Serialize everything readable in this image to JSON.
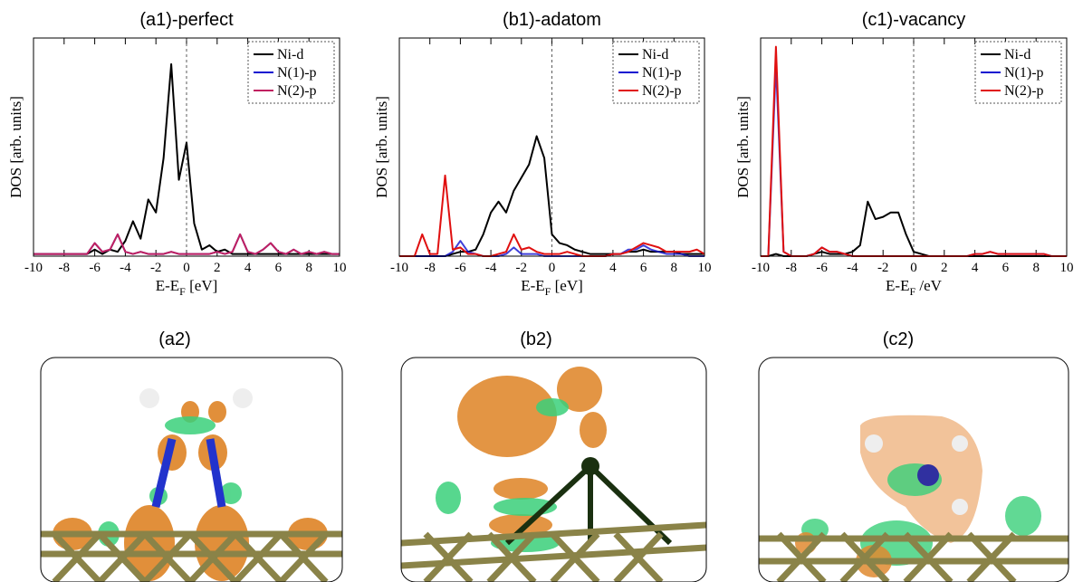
{
  "chart_data": [
    {
      "type": "line",
      "title": "(a1)-perfect",
      "ylabel": "DOS [arb. units]",
      "xlabel": [
        "E-E",
        "F",
        " [eV]"
      ],
      "xlim": [
        -10,
        10
      ],
      "ylim": [
        0,
        1
      ],
      "xticks": [
        -10,
        -8,
        -6,
        -4,
        -2,
        0,
        2,
        4,
        6,
        8,
        10
      ],
      "vline": 0,
      "legend": "upper right",
      "x": [
        -10,
        -9.5,
        -9,
        -8.5,
        -8,
        -7.5,
        -7,
        -6.5,
        -6,
        -5.5,
        -5,
        -4.5,
        -4,
        -3.5,
        -3,
        -2.5,
        -2,
        -1.5,
        -1,
        -0.5,
        0,
        0.5,
        1,
        1.5,
        2,
        2.5,
        3,
        3.5,
        4,
        4.5,
        5,
        5.5,
        6,
        6.5,
        7,
        7.5,
        8,
        8.5,
        9,
        9.5,
        10
      ],
      "series": [
        {
          "name": "Ni-d",
          "color": "#000000",
          "values": [
            0.01,
            0.01,
            0.01,
            0.01,
            0.01,
            0.01,
            0.01,
            0.01,
            0.03,
            0.01,
            0.03,
            0.02,
            0.07,
            0.16,
            0.08,
            0.26,
            0.2,
            0.45,
            0.88,
            0.35,
            0.52,
            0.15,
            0.03,
            0.05,
            0.02,
            0.03,
            0.01,
            0.01,
            0.01,
            0.01,
            0.01,
            0.01,
            0.01,
            0.01,
            0.01,
            0.01,
            0.01,
            0.01,
            0.01,
            0.01,
            0.01
          ]
        },
        {
          "name": "N(1)-p",
          "color": "#1010d0",
          "values": [
            0.01,
            0.01,
            0.01,
            0.01,
            0.01,
            0.01,
            0.01,
            0.01,
            0.06,
            0.02,
            0.03,
            0.1,
            0.02,
            0.01,
            0.02,
            0.01,
            0.01,
            0.01,
            0.02,
            0.01,
            0.01,
            0.01,
            0.01,
            0.01,
            0.02,
            0.01,
            0.02,
            0.1,
            0.02,
            0.01,
            0.03,
            0.06,
            0.02,
            0.01,
            0.03,
            0.01,
            0.02,
            0.01,
            0.02,
            0.01,
            0.01
          ]
        },
        {
          "name": "N(2)-p",
          "color": "#c02060",
          "values": [
            0.01,
            0.01,
            0.01,
            0.01,
            0.01,
            0.01,
            0.01,
            0.01,
            0.06,
            0.02,
            0.03,
            0.1,
            0.02,
            0.01,
            0.02,
            0.01,
            0.01,
            0.01,
            0.02,
            0.01,
            0.01,
            0.01,
            0.01,
            0.01,
            0.02,
            0.01,
            0.02,
            0.1,
            0.02,
            0.01,
            0.03,
            0.06,
            0.02,
            0.01,
            0.03,
            0.01,
            0.02,
            0.01,
            0.02,
            0.01,
            0.01
          ]
        }
      ]
    },
    {
      "type": "line",
      "title": "(b1)-adatom",
      "ylabel": "DOS [arb. units]",
      "xlabel": [
        "E-E",
        "F",
        " [eV]"
      ],
      "xlim": [
        -10,
        10
      ],
      "ylim": [
        0,
        1
      ],
      "xticks": [
        -10,
        -8,
        -6,
        -4,
        -2,
        0,
        2,
        4,
        6,
        8,
        10
      ],
      "vline": 0,
      "legend": "upper right",
      "x": [
        -10,
        -9.5,
        -9,
        -8.5,
        -8,
        -7.5,
        -7,
        -6.5,
        -6,
        -5.5,
        -5,
        -4.5,
        -4,
        -3.5,
        -3,
        -2.5,
        -2,
        -1.5,
        -1,
        -0.5,
        0,
        0.5,
        1,
        1.5,
        2,
        2.5,
        3,
        3.5,
        4,
        4.5,
        5,
        5.5,
        6,
        6.5,
        7,
        7.5,
        8,
        8.5,
        9,
        9.5,
        10
      ],
      "series": [
        {
          "name": "Ni-d",
          "color": "#000000",
          "values": [
            0,
            0,
            0,
            0,
            0,
            0,
            0,
            0.01,
            0.02,
            0.02,
            0.03,
            0.1,
            0.2,
            0.25,
            0.2,
            0.3,
            0.36,
            0.42,
            0.55,
            0.45,
            0.1,
            0.06,
            0.05,
            0.03,
            0.02,
            0.01,
            0.01,
            0.01,
            0.01,
            0.01,
            0.02,
            0.02,
            0.03,
            0.02,
            0.02,
            0.02,
            0.02,
            0.01,
            0.01,
            0.01,
            0.01
          ]
        },
        {
          "name": "N(1)-p",
          "color": "#1010d0",
          "values": [
            0,
            0,
            0,
            0,
            0,
            0,
            0,
            0.02,
            0.07,
            0.02,
            0.01,
            0,
            0,
            0,
            0.01,
            0.04,
            0.01,
            0.01,
            0.01,
            0,
            0,
            0,
            0,
            0,
            0,
            0,
            0,
            0,
            0.01,
            0.01,
            0.03,
            0.03,
            0.05,
            0.03,
            0.02,
            0.01,
            0.01,
            0.01,
            0,
            0,
            0
          ]
        },
        {
          "name": "N(2)-p",
          "color": "#e01010",
          "values": [
            0,
            0,
            0,
            0.1,
            0.01,
            0.01,
            0.37,
            0.03,
            0.04,
            0.01,
            0.01,
            0,
            0,
            0.01,
            0.02,
            0.1,
            0.03,
            0.04,
            0.02,
            0.01,
            0.01,
            0.01,
            0.02,
            0.01,
            0,
            0,
            0,
            0,
            0.01,
            0.01,
            0.02,
            0.04,
            0.06,
            0.05,
            0.04,
            0.02,
            0.02,
            0.02,
            0.02,
            0.03,
            0.01
          ]
        }
      ]
    },
    {
      "type": "line",
      "title": "(c1)-vacancy",
      "ylabel": "DOS [arb. units]",
      "xlabel": [
        "E-E",
        "F",
        " /eV"
      ],
      "xlim": [
        -10,
        10
      ],
      "ylim": [
        0,
        1
      ],
      "xticks": [
        -10,
        -8,
        -6,
        -4,
        -2,
        0,
        2,
        4,
        6,
        8,
        10
      ],
      "vline": 0,
      "legend": "upper right",
      "x": [
        -10,
        -9.5,
        -9,
        -8.5,
        -8,
        -7.5,
        -7,
        -6.5,
        -6,
        -5.5,
        -5,
        -4.5,
        -4,
        -3.5,
        -3,
        -2.5,
        -2,
        -1.5,
        -1,
        -0.5,
        0,
        0.5,
        1,
        1.5,
        2,
        2.5,
        3,
        3.5,
        4,
        4.5,
        5,
        5.5,
        6,
        6.5,
        7,
        7.5,
        8,
        8.5,
        9,
        9.5,
        10
      ],
      "series": [
        {
          "name": "Ni-d",
          "color": "#000000",
          "values": [
            0,
            0,
            0.01,
            0,
            0,
            0,
            0,
            0.01,
            0.02,
            0.01,
            0.01,
            0.01,
            0.02,
            0.05,
            0.25,
            0.17,
            0.18,
            0.2,
            0.2,
            0.1,
            0.02,
            0.01,
            0,
            0,
            0,
            0,
            0,
            0,
            0,
            0,
            0,
            0,
            0,
            0,
            0,
            0,
            0,
            0,
            0,
            0,
            0
          ]
        },
        {
          "name": "N(1)-p",
          "color": "#1010d0",
          "values": [
            0,
            0,
            0.88,
            0.02,
            0,
            0,
            0,
            0.01,
            0.04,
            0.02,
            0.02,
            0.01,
            0,
            0,
            0,
            0,
            0,
            0,
            0,
            0,
            0,
            0,
            0,
            0,
            0,
            0,
            0,
            0,
            0.01,
            0.01,
            0.02,
            0.01,
            0.01,
            0.01,
            0.01,
            0.01,
            0.01,
            0.01,
            0,
            0,
            0
          ]
        },
        {
          "name": "N(2)-p",
          "color": "#e01010",
          "values": [
            0,
            0,
            0.96,
            0.02,
            0,
            0,
            0,
            0.01,
            0.04,
            0.02,
            0.02,
            0.01,
            0,
            0,
            0,
            0,
            0,
            0,
            0,
            0,
            0,
            0,
            0,
            0,
            0,
            0,
            0,
            0,
            0.01,
            0.01,
            0.02,
            0.01,
            0.01,
            0.01,
            0.01,
            0.01,
            0.01,
            0.01,
            0,
            0,
            0
          ]
        }
      ]
    }
  ],
  "panels": [
    {
      "label": "(a2)"
    },
    {
      "label": "(b2)"
    },
    {
      "label": "(c2)"
    }
  ]
}
